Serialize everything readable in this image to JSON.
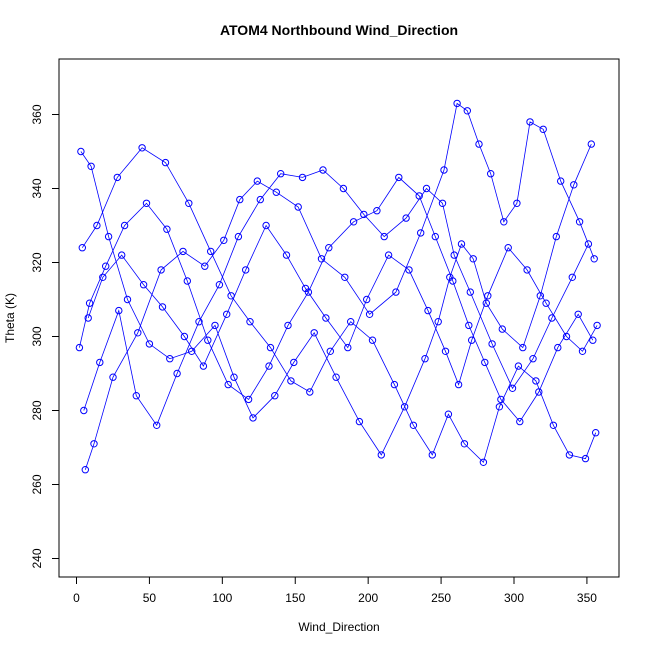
{
  "chart_data": {
    "type": "scatter",
    "title": "ATOM4 Northbound Wind_Direction",
    "xlabel": "Wind_Direction",
    "ylabel": "Theta (K)",
    "xlim": [
      -12,
      372
    ],
    "ylim": [
      235,
      375
    ],
    "x_ticks": [
      0,
      50,
      100,
      150,
      200,
      250,
      300,
      350
    ],
    "y_ticks": [
      240,
      260,
      280,
      300,
      320,
      340,
      360
    ],
    "grid": false,
    "legend": "none",
    "color": "#0000ff",
    "point_shape": "open-circle",
    "connect_points": true,
    "series": [
      {
        "x": [
          6,
          12,
          25,
          42,
          58,
          73,
          88,
          101,
          112,
          124,
          137,
          152,
          168,
          184,
          201,
          219,
          236,
          252,
          261,
          268,
          276,
          284,
          293,
          302,
          311,
          320,
          332,
          345,
          355
        ],
        "y": [
          264,
          271,
          289,
          301,
          318,
          323,
          319,
          326,
          337,
          342,
          339,
          335,
          321,
          316,
          306,
          312,
          328,
          345,
          363,
          361,
          352,
          344,
          331,
          336,
          358,
          356,
          342,
          331,
          321
        ]
      },
      {
        "x": [
          3,
          10,
          22,
          35,
          50,
          64,
          79,
          95,
          108,
          121,
          136,
          149,
          163,
          178,
          194,
          209,
          225,
          239,
          248,
          256,
          264,
          272,
          281,
          292,
          306,
          318,
          329,
          341,
          353
        ],
        "y": [
          350,
          346,
          327,
          310,
          298,
          294,
          296,
          303,
          289,
          278,
          284,
          293,
          301,
          289,
          277,
          268,
          281,
          294,
          304,
          316,
          325,
          321,
          309,
          302,
          297,
          311,
          327,
          341,
          352
        ]
      },
      {
        "x": [
          4,
          14,
          28,
          45,
          61,
          77,
          92,
          106,
          119,
          133,
          147,
          160,
          174,
          188,
          203,
          218,
          231,
          244,
          255,
          266,
          279,
          290,
          303,
          315,
          327,
          338,
          349,
          356
        ],
        "y": [
          324,
          330,
          343,
          351,
          347,
          336,
          323,
          311,
          304,
          297,
          288,
          285,
          296,
          304,
          299,
          287,
          276,
          268,
          279,
          271,
          266,
          281,
          292,
          288,
          276,
          268,
          267,
          274
        ]
      },
      {
        "x": [
          8,
          18,
          31,
          46,
          59,
          74,
          87,
          103,
          116,
          130,
          144,
          157,
          171,
          186,
          199,
          214,
          228,
          241,
          253,
          262,
          271,
          282,
          296,
          309,
          322,
          336,
          347,
          357
        ],
        "y": [
          305,
          316,
          322,
          314,
          308,
          300,
          292,
          306,
          318,
          330,
          322,
          313,
          305,
          297,
          310,
          322,
          318,
          307,
          296,
          287,
          299,
          311,
          324,
          318,
          309,
          300,
          296,
          303
        ]
      },
      {
        "x": [
          5,
          16,
          29,
          41,
          55,
          69,
          84,
          98,
          111,
          126,
          140,
          155,
          169,
          183,
          197,
          211,
          226,
          240,
          251,
          259,
          270,
          285,
          299,
          313,
          326,
          340,
          351
        ],
        "y": [
          280,
          293,
          307,
          284,
          276,
          290,
          304,
          314,
          327,
          337,
          344,
          343,
          345,
          340,
          333,
          327,
          332,
          340,
          336,
          322,
          312,
          298,
          286,
          294,
          305,
          316,
          325
        ]
      },
      {
        "x": [
          2,
          9,
          20,
          33,
          48,
          62,
          76,
          90,
          104,
          118,
          132,
          145,
          159,
          173,
          190,
          206,
          221,
          235,
          246,
          258,
          269,
          280,
          291,
          304,
          317,
          330,
          344,
          354
        ],
        "y": [
          297,
          309,
          319,
          330,
          336,
          329,
          315,
          299,
          287,
          283,
          292,
          303,
          312,
          324,
          331,
          334,
          343,
          338,
          327,
          315,
          303,
          293,
          283,
          277,
          285,
          297,
          306,
          299
        ]
      }
    ]
  }
}
